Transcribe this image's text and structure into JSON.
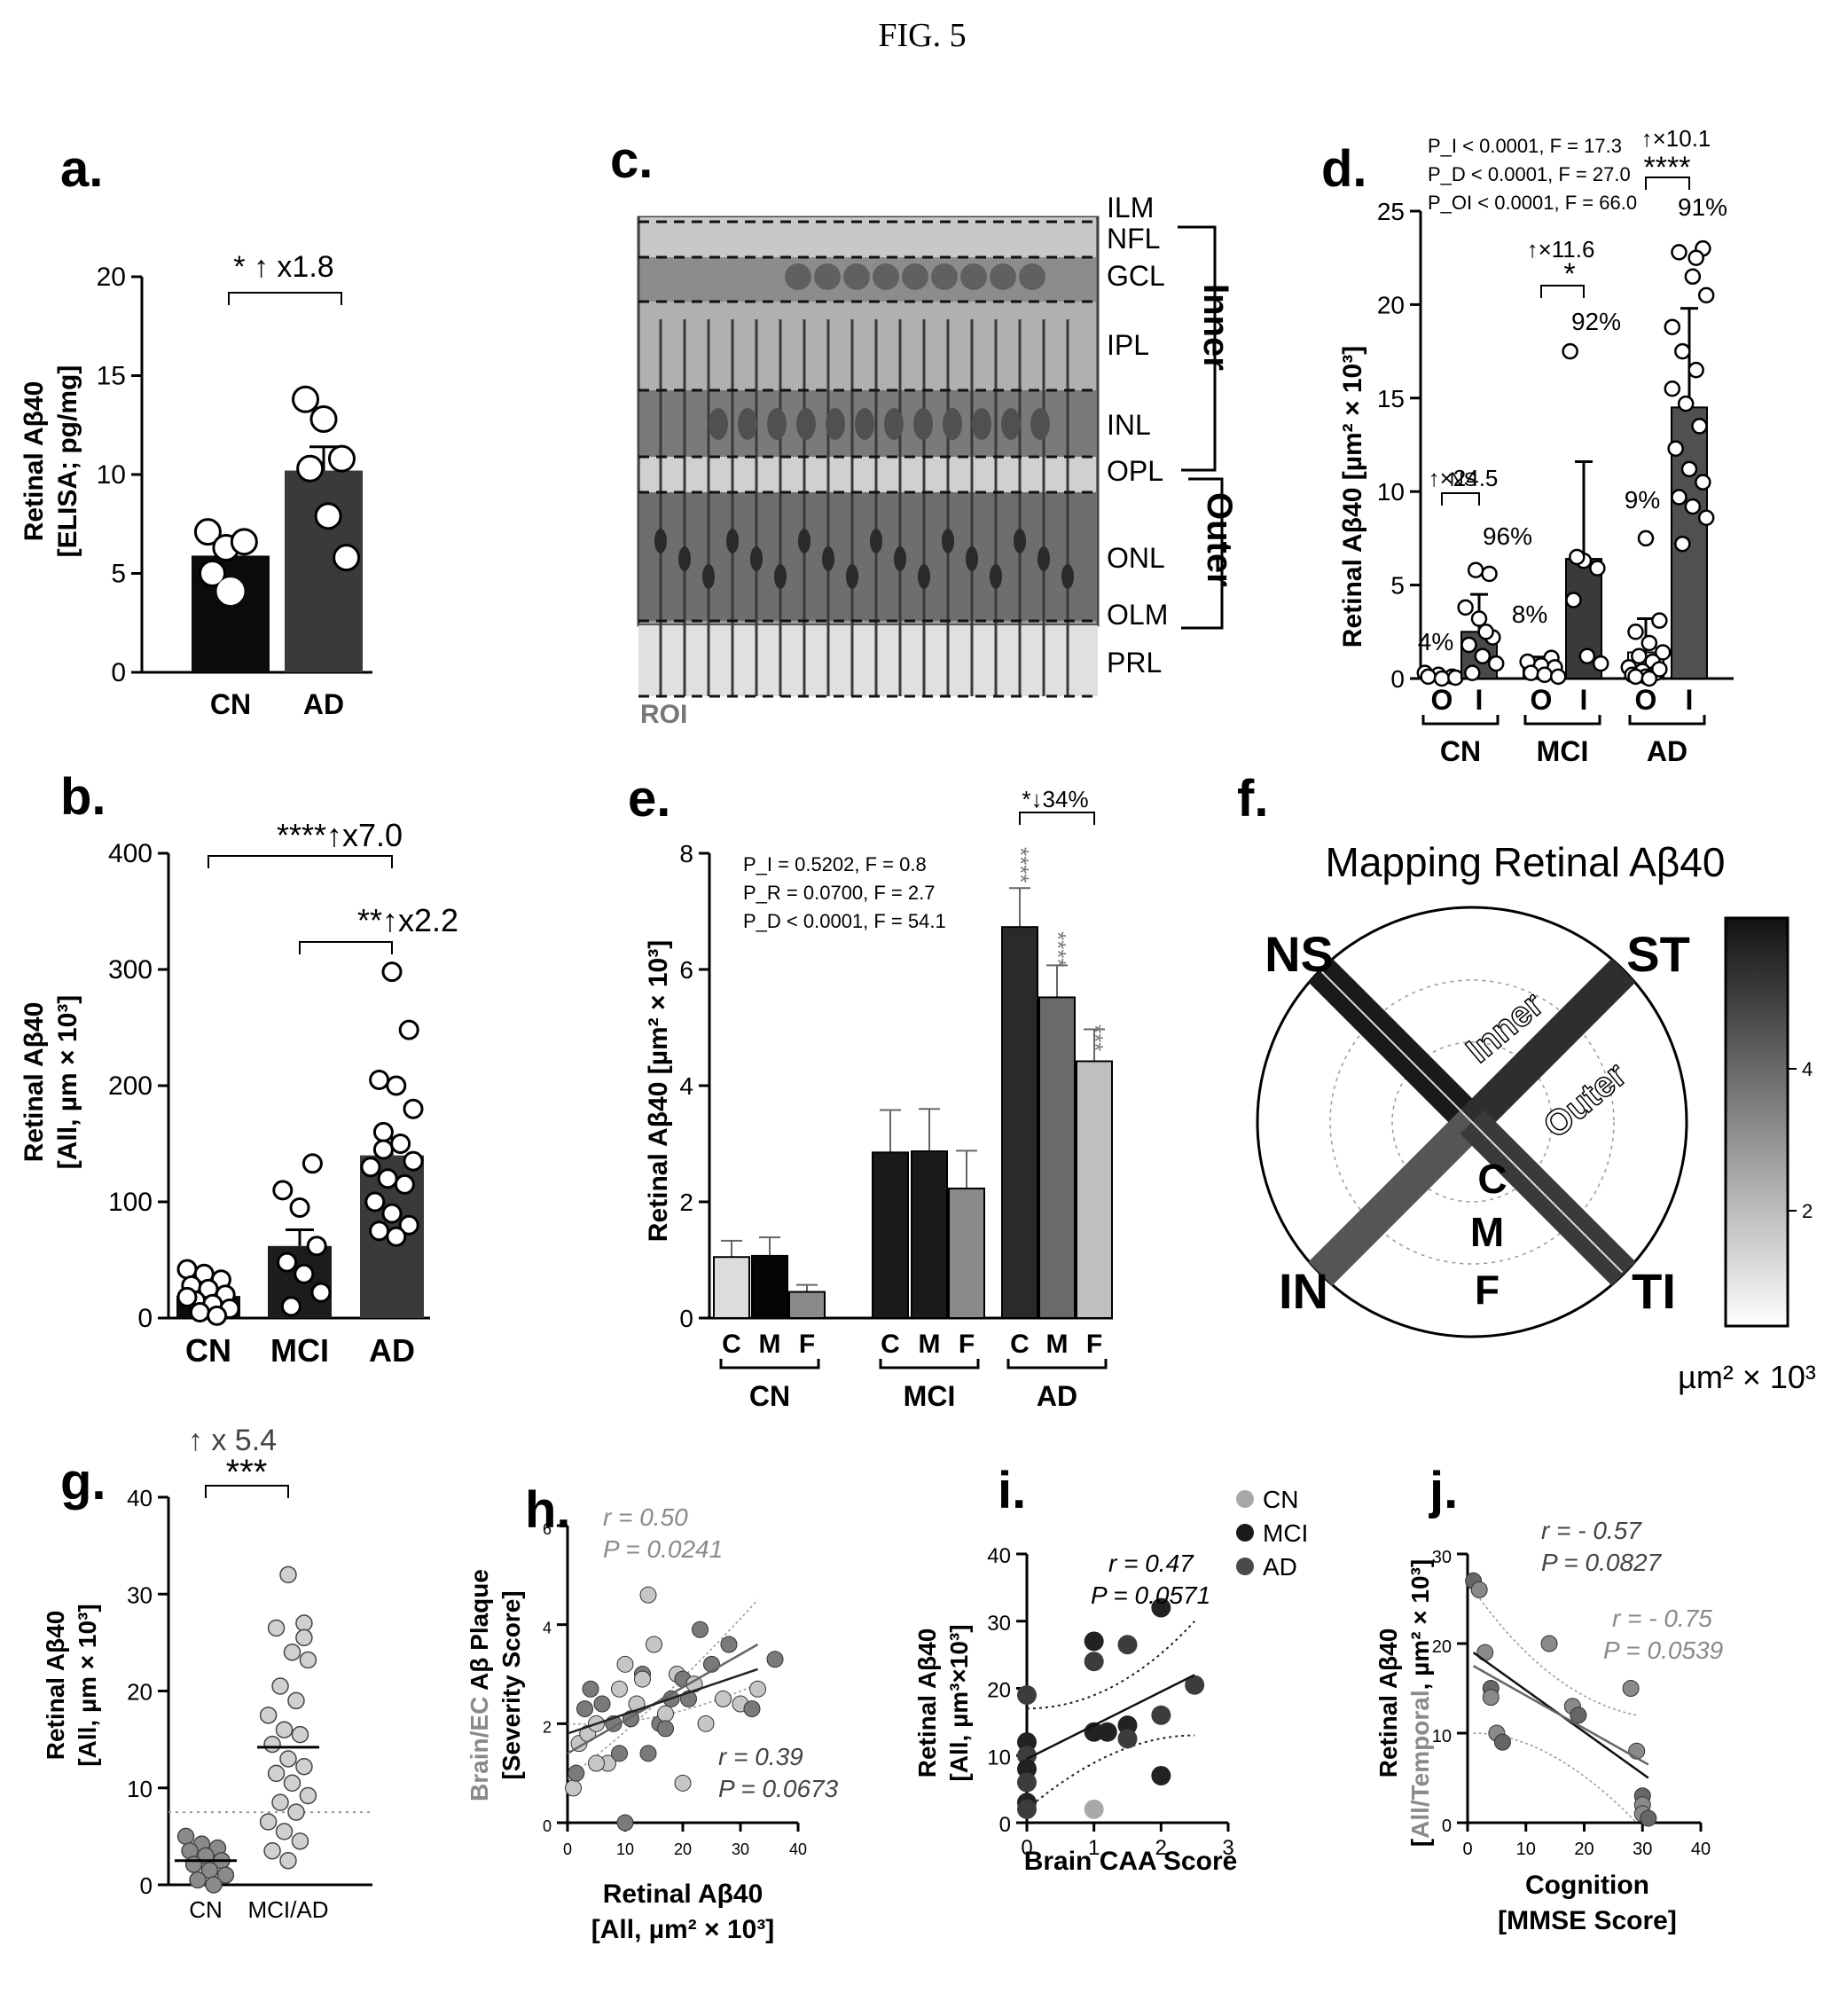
{
  "figure_title": "FIG. 5",
  "panels": {
    "a": {
      "letter": "a.",
      "ylabel1": "Retinal Aβ40",
      "ylabel2": "[ELISA; pg/mg]",
      "yticks": [
        "0",
        "5",
        "10",
        "15",
        "20"
      ],
      "cats": [
        "CN",
        "AD"
      ],
      "sig": "* ↑ x1.8"
    },
    "b": {
      "letter": "b.",
      "ylabel1": "Retinal Aβ40",
      "ylabel2": "[All, µm × 10³]",
      "yticks": [
        "0",
        "100",
        "200",
        "300",
        "400"
      ],
      "cats": [
        "CN",
        "MCI",
        "AD"
      ],
      "sig1": "****↑x7.0",
      "sig2": "**↑x2.2"
    },
    "c": {
      "letter": "c.",
      "layers": [
        "ILM",
        "NFL",
        "GCL",
        "IPL",
        "INL",
        "OPL",
        "ONL",
        "OLM",
        "PRL"
      ],
      "inner": "Inner",
      "outer": "Outer",
      "roi": "ROI"
    },
    "d": {
      "letter": "d.",
      "ylabel1": "Retinal Aβ40 [µm² × 10³]",
      "yticks": [
        "0",
        "5",
        "10",
        "15",
        "20",
        "25"
      ],
      "stats": [
        "P_I < 0.0001, F = 17.3",
        "P_D < 0.0001, F = 27.0",
        "P_OI < 0.0001, F = 66.0"
      ],
      "sub": [
        "O",
        "I"
      ],
      "groups": [
        "CN",
        "MCI",
        "AD"
      ],
      "fold": [
        "↑×24.5",
        "↑×11.6",
        "↑×10.1"
      ],
      "sig": [
        "NS",
        "*",
        "****"
      ],
      "pct_o": [
        "4%",
        "8%",
        "9%"
      ],
      "pct_i": [
        "96%",
        "92%",
        "91%"
      ]
    },
    "e": {
      "letter": "e.",
      "ylabel1": "Retinal Aβ40 [µm² × 10³]",
      "yticks": [
        "0",
        "2",
        "4",
        "6",
        "8"
      ],
      "stats": [
        "P_I = 0.5202, F = 0.8",
        "P_R = 0.0700, F = 2.7",
        "P_D < 0.0001, F = 54.1"
      ],
      "sub": [
        "C",
        "M",
        "F"
      ],
      "groups": [
        "CN",
        "MCI",
        "AD"
      ],
      "sig_top": "*↓34%",
      "stars": [
        "****",
        "****",
        "***"
      ]
    },
    "f": {
      "letter": "f.",
      "title": "Mapping Retinal Aβ40",
      "quadrants": [
        "NS",
        "ST",
        "IN",
        "TI"
      ],
      "rings": [
        "Inner",
        "Outer"
      ],
      "zones": [
        "C",
        "M",
        "F"
      ],
      "cbar_ticks": [
        "2",
        "4"
      ],
      "cbar_unit": "µm² × 10³"
    },
    "g": {
      "letter": "g.",
      "ylabel1": "Retinal Aβ40",
      "ylabel2": "[All, µm × 10³]",
      "yticks": [
        "0",
        "10",
        "20",
        "30",
        "40"
      ],
      "cats": [
        "CN",
        "MCI/AD"
      ],
      "fold": "↑ x 5.4",
      "sig": "***"
    },
    "h": {
      "letter": "h.",
      "ylabel1": "Brain/EC Aβ Plaque",
      "ylabel2": "[Severity Score]",
      "xlabel1": "Retinal Aβ40",
      "xlabel2": "[All, µm² × 10³]",
      "xticks": [
        "0",
        "10",
        "20",
        "30",
        "40"
      ],
      "yticks": [
        "0",
        "2",
        "4",
        "6"
      ],
      "r1": "r = 0.50",
      "p1": "P = 0.0241",
      "r2": "r = 0.39",
      "p2": "P = 0.0673"
    },
    "i": {
      "letter": "i.",
      "ylabel1": "Retinal Aβ40",
      "ylabel2": "[All, µm³×10³]",
      "xlabel1": "Brain CAA Score",
      "xticks": [
        "0",
        "1",
        "2",
        "3"
      ],
      "yticks": [
        "0",
        "10",
        "20",
        "30",
        "40"
      ],
      "r": "r = 0.47",
      "p": "P = 0.0571",
      "legend": [
        "CN",
        "MCI",
        "AD"
      ]
    },
    "j": {
      "letter": "j.",
      "ylabel1": "Retinal Aβ40",
      "ylabel2": "[All/Temporal, µm² × 10³]",
      "xlabel1": "Cognition",
      "xlabel2": "[MMSE Score]",
      "xticks": [
        "0",
        "10",
        "20",
        "30",
        "40"
      ],
      "yticks": [
        "0",
        "10",
        "20",
        "30"
      ],
      "r1": "r = - 0.57",
      "p1": "P = 0.0827",
      "r2": "r = - 0.75",
      "p2": "P = 0.0539"
    }
  },
  "colors": {
    "dark": "#1c1c1c",
    "mid": "#5a5a5a",
    "light": "#c8c8c8",
    "grey_text": "#8a8a8a"
  },
  "chart_data": [
    {
      "type": "bar",
      "panel": "a",
      "categories": [
        "CN",
        "AD"
      ],
      "values": [
        5.9,
        10.2
      ],
      "errors": [
        0.5,
        1.2
      ],
      "ylim": [
        0,
        20
      ],
      "points": [
        [
          7.1,
          6.3,
          6.6,
          5.0,
          4.1
        ],
        [
          13.8,
          12.8,
          10.8,
          10.3,
          7.9,
          5.8
        ]
      ]
    },
    {
      "type": "bar",
      "panel": "b",
      "categories": [
        "CN",
        "MCI",
        "AD"
      ],
      "values": [
        19,
        62,
        140
      ],
      "errors": [
        5,
        14,
        15
      ],
      "ylim": [
        0,
        400
      ],
      "points": [
        [
          42,
          38,
          33,
          28,
          25,
          20,
          15,
          12,
          8,
          5,
          2,
          18
        ],
        [
          133,
          110,
          95,
          62,
          48,
          38,
          22,
          10
        ],
        [
          298,
          248,
          205,
          200,
          180,
          160,
          150,
          130,
          120,
          115,
          100,
          90,
          80,
          75,
          70,
          135,
          145
        ]
      ]
    },
    {
      "type": "bar",
      "panel": "d",
      "categories": [
        "CN O",
        "CN I",
        "MCI O",
        "MCI I",
        "AD O",
        "AD I"
      ],
      "values": [
        0.1,
        2.5,
        0.55,
        6.4,
        1.4,
        14.5
      ],
      "errors": [
        0.2,
        2.0,
        0.6,
        5.2,
        1.8,
        5.3
      ],
      "ylim": [
        0,
        25
      ],
      "points": [
        [
          0.3,
          0.2,
          0.1,
          0.1,
          0,
          0.05
        ],
        [
          5.8,
          5.6,
          3.8,
          3.2,
          2.2,
          1.8,
          1.2,
          0.8,
          0.3,
          2.5
        ],
        [
          1.1,
          0.9,
          0.7,
          0.6,
          0.3,
          0.2,
          0.1
        ],
        [
          17.5,
          6.3,
          5.9,
          4.2,
          1.2,
          0.8,
          6.5
        ],
        [
          7.5,
          3.1,
          2.5,
          1.9,
          1.4,
          1.2,
          0.9,
          0.6,
          0.4,
          0.3,
          0.2,
          0.1,
          0.5,
          0.1,
          0
        ],
        [
          23,
          22.8,
          21.5,
          20.5,
          17.5,
          16.5,
          15.5,
          14.7,
          13.5,
          12.3,
          11.2,
          10.5,
          9.7,
          9.2,
          8.6,
          7.2,
          22.5,
          18.8
        ]
      ]
    },
    {
      "type": "bar",
      "panel": "e",
      "categories": [
        "CN C",
        "CN M",
        "CN F",
        "MCI C",
        "MCI M",
        "MCI F",
        "AD C",
        "AD M",
        "AD F"
      ],
      "values": [
        1.05,
        1.07,
        0.45,
        2.85,
        2.87,
        2.23,
        6.73,
        5.52,
        4.42
      ],
      "errors": [
        0.28,
        0.32,
        0.12,
        0.73,
        0.73,
        0.65,
        0.67,
        0.55,
        0.55
      ],
      "ylim": [
        0,
        8
      ]
    },
    {
      "type": "scatter",
      "panel": "g",
      "categories": [
        "CN",
        "MCI/AD"
      ],
      "means": [
        2.5,
        14.2
      ],
      "threshold": 7.5,
      "ylim": [
        0,
        40
      ],
      "points": [
        [
          5,
          4.2,
          3.8,
          3.5,
          3,
          2.5,
          2.1,
          1.5,
          1,
          0.5,
          0
        ],
        [
          32,
          27,
          26.5,
          24,
          23.2,
          20.5,
          19,
          17.5,
          16,
          15.5,
          14.5,
          13,
          12.2,
          11.5,
          10.5,
          9.2,
          8.5,
          7.5,
          6.5,
          5.5,
          4.5,
          3.5,
          2.5,
          25.5
        ]
      ]
    },
    {
      "type": "scatter",
      "panel": "h",
      "xlim": [
        0,
        40
      ],
      "ylim": [
        0,
        6
      ],
      "points": [
        [
          1,
          0.7
        ],
        [
          1.5,
          1
        ],
        [
          2,
          1.6
        ],
        [
          3,
          2.3
        ],
        [
          3.5,
          1.8
        ],
        [
          4,
          2.7
        ],
        [
          5,
          2
        ],
        [
          6,
          2.4
        ],
        [
          7,
          1.2
        ],
        [
          8,
          2
        ],
        [
          9,
          2.7
        ],
        [
          10,
          0
        ],
        [
          10,
          3.2
        ],
        [
          11,
          2.1
        ],
        [
          12,
          2.4
        ],
        [
          13,
          3
        ],
        [
          14,
          4.6
        ],
        [
          14,
          1.4
        ],
        [
          15,
          3.6
        ],
        [
          16,
          2
        ],
        [
          17,
          2.2
        ],
        [
          18,
          2.5
        ],
        [
          19,
          3
        ],
        [
          20,
          2.9
        ],
        [
          20,
          0.8
        ],
        [
          21,
          2.5
        ],
        [
          22,
          2.8
        ],
        [
          23,
          3.9
        ],
        [
          24,
          2
        ],
        [
          25,
          3.2
        ],
        [
          27,
          2.5
        ],
        [
          28,
          3.6
        ],
        [
          30,
          2.4
        ],
        [
          32,
          2.3
        ],
        [
          33,
          2.7
        ],
        [
          36,
          3.3
        ],
        [
          5,
          1.2
        ],
        [
          9,
          1.4
        ],
        [
          13,
          2.9
        ],
        [
          17,
          1.9
        ]
      ],
      "fits": [
        {
          "x": [
            0,
            33
          ],
          "y": [
            1.4,
            3.6
          ]
        },
        {
          "x": [
            0,
            33
          ],
          "y": [
            1.8,
            3.1
          ]
        }
      ]
    },
    {
      "type": "scatter",
      "panel": "i",
      "xlim": [
        0,
        3
      ],
      "ylim": [
        0,
        40
      ],
      "points": [
        [
          0,
          19
        ],
        [
          0,
          12
        ],
        [
          0,
          10
        ],
        [
          0,
          8
        ],
        [
          0,
          6
        ],
        [
          0,
          3
        ],
        [
          0,
          2
        ],
        [
          1,
          27
        ],
        [
          1,
          24
        ],
        [
          1,
          13.5
        ],
        [
          1,
          2
        ],
        [
          1.2,
          13.5
        ],
        [
          1.5,
          26.5
        ],
        [
          1.5,
          14.5
        ],
        [
          1.5,
          12.5
        ],
        [
          2,
          32
        ],
        [
          2,
          16
        ],
        [
          2,
          7
        ],
        [
          2.5,
          20.5
        ]
      ],
      "fit": {
        "x": [
          0,
          2.5
        ],
        "y": [
          9.5,
          22
        ]
      }
    },
    {
      "type": "scatter",
      "panel": "j",
      "xlim": [
        0,
        40
      ],
      "ylim": [
        0,
        30
      ],
      "points": [
        [
          1,
          27
        ],
        [
          2,
          26
        ],
        [
          3,
          19
        ],
        [
          4,
          15
        ],
        [
          4,
          14
        ],
        [
          5,
          10
        ],
        [
          6,
          9
        ],
        [
          14,
          20
        ],
        [
          18,
          13
        ],
        [
          19,
          12
        ],
        [
          28,
          15
        ],
        [
          29,
          8
        ],
        [
          30,
          3
        ],
        [
          30,
          2
        ],
        [
          30,
          1
        ],
        [
          31,
          0.5
        ]
      ],
      "fits": [
        {
          "x": [
            1,
            31
          ],
          "y": [
            19,
            5
          ]
        },
        {
          "x": [
            1,
            31
          ],
          "y": [
            17.5,
            6.5
          ]
        }
      ]
    }
  ]
}
